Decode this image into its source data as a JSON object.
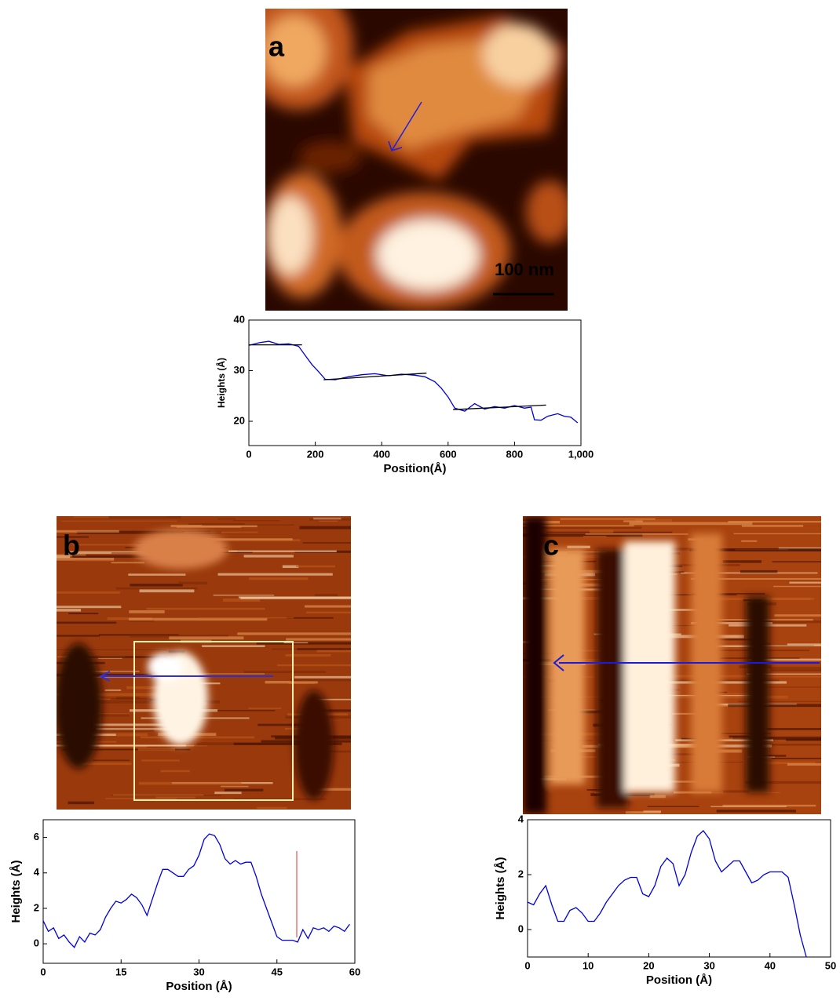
{
  "images": [
    {
      "label": "a",
      "scale_bar": "100 nm"
    },
    {
      "label": "b"
    },
    {
      "label": "c"
    }
  ],
  "chart_data": [
    {
      "type": "line",
      "y_label": "Heights (Å)",
      "x_label": "Position(Å)",
      "xlim": [
        0,
        1000
      ],
      "ylim": [
        15.2,
        40
      ],
      "xticks": [
        0,
        200,
        400,
        600,
        800,
        {
          "value": 1000,
          "label": "1,000"
        }
      ],
      "yticks": [
        20,
        30,
        40
      ],
      "series": [
        {
          "color": "#0000dd",
          "x": [
            0,
            30,
            60,
            90,
            120,
            150,
            170,
            190,
            210,
            230,
            260,
            300,
            340,
            380,
            420,
            460,
            500,
            530,
            560,
            580,
            600,
            620,
            650,
            680,
            710,
            740,
            770,
            800,
            830,
            850,
            860,
            880,
            900,
            930,
            950,
            970,
            990
          ],
          "values": [
            35,
            35.5,
            35.8,
            35.2,
            35.3,
            34.8,
            33,
            31.2,
            29.8,
            28.3,
            28.2,
            28.8,
            29.2,
            29.4,
            29,
            29.3,
            29.1,
            28.8,
            27.8,
            26.5,
            24.8,
            22.6,
            22,
            23.5,
            22.4,
            22.9,
            22.6,
            23.1,
            22.6,
            22.8,
            20.3,
            20.2,
            21,
            21.5,
            21,
            20.8,
            19.7
          ]
        },
        {
          "color": "#000000",
          "x": [
            0,
            160
          ],
          "values": [
            35.1,
            35.1
          ]
        },
        {
          "color": "#000000",
          "x": [
            225,
            535
          ],
          "values": [
            28.2,
            29.5
          ]
        },
        {
          "color": "#000000",
          "x": [
            615,
            895
          ],
          "values": [
            22.3,
            23.2
          ]
        }
      ]
    },
    {
      "type": "line",
      "y_label": "Heights (Å)",
      "x_label": "Position (Å)",
      "xlim": [
        0,
        60
      ],
      "ylim": [
        -1.1,
        7
      ],
      "xticks": [
        0,
        15,
        30,
        45,
        60
      ],
      "yticks": [
        0,
        2,
        4,
        6
      ],
      "series": [
        {
          "color": "#0000dd",
          "x": [
            0,
            1,
            2,
            3,
            4,
            5,
            6,
            7,
            8,
            9,
            10,
            11,
            12,
            13,
            14,
            15,
            16,
            17,
            18,
            19,
            20,
            21,
            22,
            23,
            24,
            25,
            26,
            27,
            28,
            29,
            30,
            31,
            32,
            33,
            34,
            35,
            36,
            37,
            38,
            39,
            40,
            41,
            42,
            43,
            44,
            45,
            46,
            47,
            48,
            49,
            50,
            51,
            52,
            53,
            54,
            55,
            56,
            57,
            58,
            59
          ],
          "values": [
            1.3,
            0.7,
            0.9,
            0.3,
            0.5,
            0.1,
            -0.2,
            0.4,
            0.1,
            0.6,
            0.5,
            0.8,
            1.5,
            2.0,
            2.4,
            2.3,
            2.5,
            2.8,
            2.6,
            2.2,
            1.6,
            2.5,
            3.4,
            4.2,
            4.2,
            4.0,
            3.8,
            3.8,
            4.2,
            4.4,
            5.0,
            5.9,
            6.2,
            6.1,
            5.6,
            4.8,
            4.5,
            4.7,
            4.5,
            4.6,
            4.6,
            3.8,
            2.8,
            2.0,
            1.2,
            0.4,
            0.2,
            0.2,
            0.2,
            0.1,
            0.8,
            0.3,
            0.9,
            0.8,
            0.9,
            0.7,
            1.0,
            0.9,
            0.7,
            1.1
          ]
        }
      ]
    },
    {
      "type": "line",
      "y_label": "Heights (Å)",
      "x_label": "Position (Å)",
      "xlim": [
        0,
        50
      ],
      "ylim": [
        -1,
        4
      ],
      "xticks": [
        0,
        10,
        20,
        30,
        40,
        50
      ],
      "yticks": [
        0,
        2,
        4
      ],
      "series": [
        {
          "color": "#0000dd",
          "x": [
            0,
            1,
            2,
            3,
            4,
            5,
            6,
            7,
            8,
            9,
            10,
            11,
            12,
            13,
            14,
            15,
            16,
            17,
            18,
            19,
            20,
            21,
            22,
            23,
            24,
            25,
            26,
            27,
            28,
            29,
            30,
            31,
            32,
            33,
            34,
            35,
            36,
            37,
            38,
            39,
            40,
            41,
            42,
            43,
            44,
            45,
            46
          ],
          "values": [
            1.0,
            0.9,
            1.3,
            1.6,
            0.9,
            0.3,
            0.3,
            0.7,
            0.8,
            0.6,
            0.3,
            0.3,
            0.6,
            1.0,
            1.3,
            1.6,
            1.8,
            1.9,
            1.9,
            1.3,
            1.2,
            1.6,
            2.3,
            2.6,
            2.4,
            1.6,
            2.0,
            2.8,
            3.4,
            3.6,
            3.3,
            2.5,
            2.1,
            2.3,
            2.5,
            2.5,
            2.1,
            1.7,
            1.8,
            2.0,
            2.1,
            2.1,
            2.1,
            1.9,
            0.9,
            -0.2,
            -1.0
          ]
        }
      ]
    }
  ]
}
